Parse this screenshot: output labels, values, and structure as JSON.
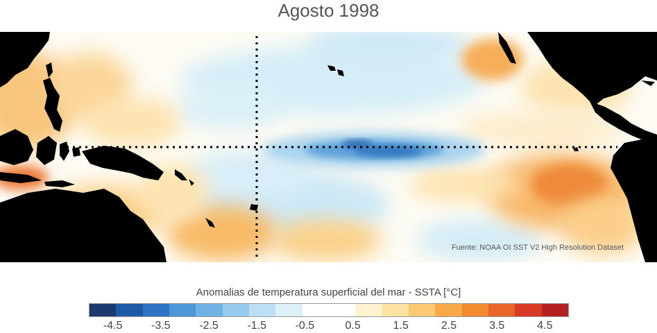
{
  "title": "Agosto 1998",
  "source": "Fuente: NOAA OI SST V2 High Resolution Dataset",
  "colorbar": {
    "title": "Anomalias de temperatura superficial del mar - SSTA  [°C]",
    "min": -5,
    "max": 5,
    "step": 0.5,
    "colors": [
      "#1c3a6e",
      "#1f5aa6",
      "#2f74c4",
      "#4d97d6",
      "#70b2e3",
      "#96cbed",
      "#bcdff3",
      "#dcf0f8",
      "#ffffff",
      "#ffffff",
      "#fff3d2",
      "#fde3a3",
      "#fbc874",
      "#f8a948",
      "#f28a30",
      "#e8662a",
      "#d93a26",
      "#b52022"
    ],
    "tick_labels": [
      "-4.5",
      "-3.5",
      "-2.5",
      "-1.5",
      "-0.5",
      "0.5",
      "1.5",
      "2.5",
      "3.5",
      "4.5"
    ],
    "tick_values": [
      -4.5,
      -3.5,
      -2.5,
      -1.5,
      -0.5,
      0.5,
      1.5,
      2.5,
      3.5,
      4.5
    ]
  },
  "map": {
    "land_color": "#000000",
    "reference_lines": "dotted",
    "anomaly_regions": [
      {
        "name": "equatorial-cold-tongue",
        "value": -2.5
      },
      {
        "name": "western-pacific-warm-pool",
        "value": 1.5
      },
      {
        "name": "eastern-pacific-south-warm",
        "value": 2.5
      },
      {
        "name": "north-pacific-warm",
        "value": 1.5
      },
      {
        "name": "south-pacific-warm",
        "value": 1.5
      },
      {
        "name": "central-pacific-cool",
        "value": -1.0
      }
    ]
  }
}
